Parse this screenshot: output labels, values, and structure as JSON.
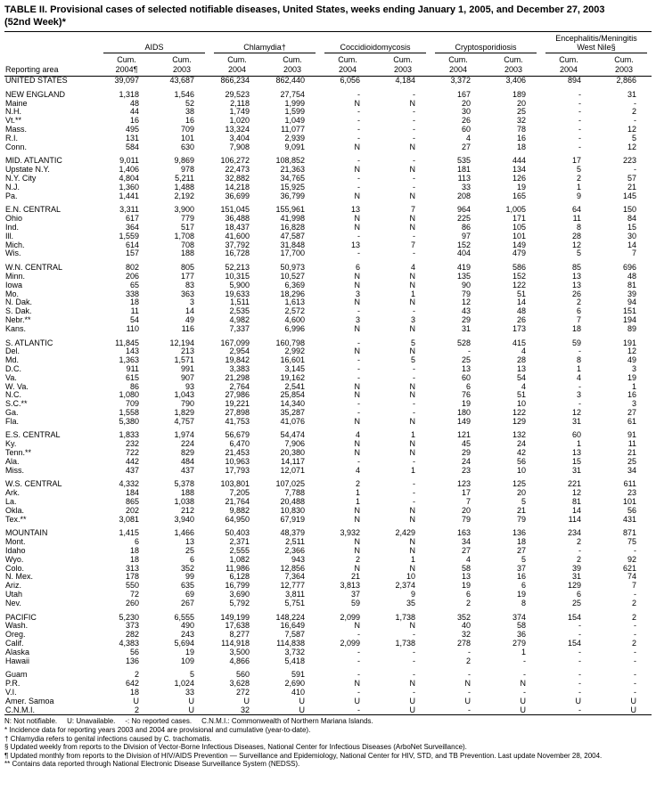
{
  "title": {
    "line1": "TABLE II. Provisional cases of selected notifiable diseases, United States, weeks ending January 1, 2005, and December 27, 2003",
    "line2": "(52nd Week)*"
  },
  "header": {
    "reporting_area": "Reporting area",
    "groups": [
      {
        "label": "AIDS",
        "columns": [
          [
            "Cum.",
            "2004¶"
          ],
          [
            "Cum.",
            "2003"
          ]
        ]
      },
      {
        "label": "Chlamydia†",
        "columns": [
          [
            "Cum.",
            "2004"
          ],
          [
            "Cum.",
            "2003"
          ]
        ]
      },
      {
        "label": "Coccidioidomycosis",
        "columns": [
          [
            "Cum.",
            "2004"
          ],
          [
            "Cum.",
            "2003"
          ]
        ]
      },
      {
        "label": "Cryptosporidiosis",
        "columns": [
          [
            "Cum.",
            "2004"
          ],
          [
            "Cum.",
            "2003"
          ]
        ]
      },
      {
        "label": "Encephalitis/Meningitis\nWest Nile§",
        "columns": [
          [
            "Cum.",
            "2004"
          ],
          [
            "Cum.",
            "2003"
          ]
        ]
      }
    ]
  },
  "row_groups": [
    [
      {
        "area": "UNITED STATES",
        "values": [
          "39,097",
          "43,687",
          "866,234",
          "862,440",
          "6,056",
          "4,184",
          "3,372",
          "3,406",
          "894",
          "2,866"
        ]
      }
    ],
    [
      {
        "area": "NEW ENGLAND",
        "values": [
          "1,318",
          "1,546",
          "29,523",
          "27,754",
          "-",
          "-",
          "167",
          "189",
          "-",
          "31"
        ]
      },
      {
        "area": "Maine",
        "values": [
          "48",
          "52",
          "2,118",
          "1,999",
          "N",
          "N",
          "20",
          "20",
          "-",
          "-"
        ]
      },
      {
        "area": "N.H.",
        "values": [
          "44",
          "38",
          "1,749",
          "1,599",
          "-",
          "-",
          "30",
          "25",
          "-",
          "2"
        ]
      },
      {
        "area": "Vt.**",
        "values": [
          "16",
          "16",
          "1,020",
          "1,049",
          "-",
          "-",
          "26",
          "32",
          "-",
          "-"
        ]
      },
      {
        "area": "Mass.",
        "values": [
          "495",
          "709",
          "13,324",
          "11,077",
          "-",
          "-",
          "60",
          "78",
          "-",
          "12"
        ]
      },
      {
        "area": "R.I.",
        "values": [
          "131",
          "101",
          "3,404",
          "2,939",
          "-",
          "-",
          "4",
          "16",
          "-",
          "5"
        ]
      },
      {
        "area": "Conn.",
        "values": [
          "584",
          "630",
          "7,908",
          "9,091",
          "N",
          "N",
          "27",
          "18",
          "-",
          "12"
        ]
      }
    ],
    [
      {
        "area": "MID. ATLANTIC",
        "values": [
          "9,011",
          "9,869",
          "106,272",
          "108,852",
          "-",
          "-",
          "535",
          "444",
          "17",
          "223"
        ]
      },
      {
        "area": "Upstate N.Y.",
        "values": [
          "1,406",
          "978",
          "22,473",
          "21,363",
          "N",
          "N",
          "181",
          "134",
          "5",
          "-"
        ]
      },
      {
        "area": "N.Y. City",
        "values": [
          "4,804",
          "5,211",
          "32,882",
          "34,765",
          "-",
          "-",
          "113",
          "126",
          "2",
          "57"
        ]
      },
      {
        "area": "N.J.",
        "values": [
          "1,360",
          "1,488",
          "14,218",
          "15,925",
          "-",
          "-",
          "33",
          "19",
          "1",
          "21"
        ]
      },
      {
        "area": "Pa.",
        "values": [
          "1,441",
          "2,192",
          "36,699",
          "36,799",
          "N",
          "N",
          "208",
          "165",
          "9",
          "145"
        ]
      }
    ],
    [
      {
        "area": "E.N. CENTRAL",
        "values": [
          "3,311",
          "3,900",
          "151,045",
          "155,961",
          "13",
          "7",
          "964",
          "1,005",
          "64",
          "150"
        ]
      },
      {
        "area": "Ohio",
        "values": [
          "617",
          "779",
          "36,488",
          "41,998",
          "N",
          "N",
          "225",
          "171",
          "11",
          "84"
        ]
      },
      {
        "area": "Ind.",
        "values": [
          "364",
          "517",
          "18,437",
          "16,828",
          "N",
          "N",
          "86",
          "105",
          "8",
          "15"
        ]
      },
      {
        "area": "Ill.",
        "values": [
          "1,559",
          "1,708",
          "41,600",
          "47,587",
          "-",
          "-",
          "97",
          "101",
          "28",
          "30"
        ]
      },
      {
        "area": "Mich.",
        "values": [
          "614",
          "708",
          "37,792",
          "31,848",
          "13",
          "7",
          "152",
          "149",
          "12",
          "14"
        ]
      },
      {
        "area": "Wis.",
        "values": [
          "157",
          "188",
          "16,728",
          "17,700",
          "-",
          "-",
          "404",
          "479",
          "5",
          "7"
        ]
      }
    ],
    [
      {
        "area": "W.N. CENTRAL",
        "values": [
          "802",
          "805",
          "52,213",
          "50,973",
          "6",
          "4",
          "419",
          "586",
          "85",
          "696"
        ]
      },
      {
        "area": "Minn.",
        "values": [
          "206",
          "177",
          "10,315",
          "10,527",
          "N",
          "N",
          "135",
          "152",
          "13",
          "48"
        ]
      },
      {
        "area": "Iowa",
        "values": [
          "65",
          "83",
          "5,900",
          "6,369",
          "N",
          "N",
          "90",
          "122",
          "13",
          "81"
        ]
      },
      {
        "area": "Mo.",
        "values": [
          "338",
          "363",
          "19,633",
          "18,296",
          "3",
          "1",
          "79",
          "51",
          "26",
          "39"
        ]
      },
      {
        "area": "N. Dak.",
        "values": [
          "18",
          "3",
          "1,511",
          "1,613",
          "N",
          "N",
          "12",
          "14",
          "2",
          "94"
        ]
      },
      {
        "area": "S. Dak.",
        "values": [
          "11",
          "14",
          "2,535",
          "2,572",
          "-",
          "-",
          "43",
          "48",
          "6",
          "151"
        ]
      },
      {
        "area": "Nebr.**",
        "values": [
          "54",
          "49",
          "4,982",
          "4,600",
          "3",
          "3",
          "29",
          "26",
          "7",
          "194"
        ]
      },
      {
        "area": "Kans.",
        "values": [
          "110",
          "116",
          "7,337",
          "6,996",
          "N",
          "N",
          "31",
          "173",
          "18",
          "89"
        ]
      }
    ],
    [
      {
        "area": "S. ATLANTIC",
        "values": [
          "11,845",
          "12,194",
          "167,099",
          "160,798",
          "-",
          "5",
          "528",
          "415",
          "59",
          "191"
        ]
      },
      {
        "area": "Del.",
        "values": [
          "143",
          "213",
          "2,954",
          "2,992",
          "N",
          "N",
          "-",
          "4",
          "-",
          "12"
        ]
      },
      {
        "area": "Md.",
        "values": [
          "1,363",
          "1,571",
          "19,842",
          "16,601",
          "-",
          "5",
          "25",
          "28",
          "8",
          "49"
        ]
      },
      {
        "area": "D.C.",
        "values": [
          "911",
          "991",
          "3,383",
          "3,145",
          "-",
          "-",
          "13",
          "13",
          "1",
          "3"
        ]
      },
      {
        "area": "Va.",
        "values": [
          "615",
          "907",
          "21,298",
          "19,162",
          "-",
          "-",
          "60",
          "54",
          "4",
          "19"
        ]
      },
      {
        "area": "W. Va.",
        "values": [
          "86",
          "93",
          "2,764",
          "2,541",
          "N",
          "N",
          "6",
          "4",
          "-",
          "1"
        ]
      },
      {
        "area": "N.C.",
        "values": [
          "1,080",
          "1,043",
          "27,986",
          "25,854",
          "N",
          "N",
          "76",
          "51",
          "3",
          "16"
        ]
      },
      {
        "area": "S.C.**",
        "values": [
          "709",
          "790",
          "19,221",
          "14,340",
          "-",
          "-",
          "19",
          "10",
          "-",
          "3"
        ]
      },
      {
        "area": "Ga.",
        "values": [
          "1,558",
          "1,829",
          "27,898",
          "35,287",
          "-",
          "-",
          "180",
          "122",
          "12",
          "27"
        ]
      },
      {
        "area": "Fla.",
        "values": [
          "5,380",
          "4,757",
          "41,753",
          "41,076",
          "N",
          "N",
          "149",
          "129",
          "31",
          "61"
        ]
      }
    ],
    [
      {
        "area": "E.S. CENTRAL",
        "values": [
          "1,833",
          "1,974",
          "56,679",
          "54,474",
          "4",
          "1",
          "121",
          "132",
          "60",
          "91"
        ]
      },
      {
        "area": "Ky.",
        "values": [
          "232",
          "224",
          "6,470",
          "7,906",
          "N",
          "N",
          "45",
          "24",
          "1",
          "11"
        ]
      },
      {
        "area": "Tenn.**",
        "values": [
          "722",
          "829",
          "21,453",
          "20,380",
          "N",
          "N",
          "29",
          "42",
          "13",
          "21"
        ]
      },
      {
        "area": "Ala.",
        "values": [
          "442",
          "484",
          "10,963",
          "14,117",
          "-",
          "-",
          "24",
          "56",
          "15",
          "25"
        ]
      },
      {
        "area": "Miss.",
        "values": [
          "437",
          "437",
          "17,793",
          "12,071",
          "4",
          "1",
          "23",
          "10",
          "31",
          "34"
        ]
      }
    ],
    [
      {
        "area": "W.S. CENTRAL",
        "values": [
          "4,332",
          "5,378",
          "103,801",
          "107,025",
          "2",
          "-",
          "123",
          "125",
          "221",
          "611"
        ]
      },
      {
        "area": "Ark.",
        "values": [
          "184",
          "188",
          "7,205",
          "7,788",
          "1",
          "-",
          "17",
          "20",
          "12",
          "23"
        ]
      },
      {
        "area": "La.",
        "values": [
          "865",
          "1,038",
          "21,764",
          "20,488",
          "1",
          "-",
          "7",
          "5",
          "81",
          "101"
        ]
      },
      {
        "area": "Okla.",
        "values": [
          "202",
          "212",
          "9,882",
          "10,830",
          "N",
          "N",
          "20",
          "21",
          "14",
          "56"
        ]
      },
      {
        "area": "Tex.**",
        "values": [
          "3,081",
          "3,940",
          "64,950",
          "67,919",
          "N",
          "N",
          "79",
          "79",
          "114",
          "431"
        ]
      }
    ],
    [
      {
        "area": "MOUNTAIN",
        "values": [
          "1,415",
          "1,466",
          "50,403",
          "48,379",
          "3,932",
          "2,429",
          "163",
          "136",
          "234",
          "871"
        ]
      },
      {
        "area": "Mont.",
        "values": [
          "6",
          "13",
          "2,371",
          "2,511",
          "N",
          "N",
          "34",
          "18",
          "2",
          "75"
        ]
      },
      {
        "area": "Idaho",
        "values": [
          "18",
          "25",
          "2,555",
          "2,366",
          "N",
          "N",
          "27",
          "27",
          "-",
          "-"
        ]
      },
      {
        "area": "Wyo.",
        "values": [
          "18",
          "6",
          "1,082",
          "943",
          "2",
          "1",
          "4",
          "5",
          "2",
          "92"
        ]
      },
      {
        "area": "Colo.",
        "values": [
          "313",
          "352",
          "11,986",
          "12,856",
          "N",
          "N",
          "58",
          "37",
          "39",
          "621"
        ]
      },
      {
        "area": "N. Mex.",
        "values": [
          "178",
          "99",
          "6,128",
          "7,364",
          "21",
          "10",
          "13",
          "16",
          "31",
          "74"
        ]
      },
      {
        "area": "Ariz.",
        "values": [
          "550",
          "635",
          "16,799",
          "12,777",
          "3,813",
          "2,374",
          "19",
          "6",
          "129",
          "7"
        ]
      },
      {
        "area": "Utah",
        "values": [
          "72",
          "69",
          "3,690",
          "3,811",
          "37",
          "9",
          "6",
          "19",
          "6",
          "-"
        ]
      },
      {
        "area": "Nev.",
        "values": [
          "260",
          "267",
          "5,792",
          "5,751",
          "59",
          "35",
          "2",
          "8",
          "25",
          "2"
        ]
      }
    ],
    [
      {
        "area": "PACIFIC",
        "values": [
          "5,230",
          "6,555",
          "149,199",
          "148,224",
          "2,099",
          "1,738",
          "352",
          "374",
          "154",
          "2"
        ]
      },
      {
        "area": "Wash.",
        "values": [
          "373",
          "490",
          "17,638",
          "16,649",
          "N",
          "N",
          "40",
          "58",
          "-",
          "-"
        ]
      },
      {
        "area": "Oreg.",
        "values": [
          "282",
          "243",
          "8,277",
          "7,587",
          "-",
          "-",
          "32",
          "36",
          "-",
          "-"
        ]
      },
      {
        "area": "Calif.",
        "values": [
          "4,383",
          "5,694",
          "114,918",
          "114,838",
          "2,099",
          "1,738",
          "278",
          "279",
          "154",
          "2"
        ]
      },
      {
        "area": "Alaska",
        "values": [
          "56",
          "19",
          "3,500",
          "3,732",
          "-",
          "-",
          "-",
          "1",
          "-",
          "-"
        ]
      },
      {
        "area": "Hawaii",
        "values": [
          "136",
          "109",
          "4,866",
          "5,418",
          "-",
          "-",
          "2",
          "-",
          "-",
          "-"
        ]
      }
    ],
    [
      {
        "area": "Guam",
        "values": [
          "2",
          "5",
          "560",
          "591",
          "-",
          "-",
          "-",
          "-",
          "-",
          "-"
        ]
      },
      {
        "area": "P.R.",
        "values": [
          "642",
          "1,024",
          "3,628",
          "2,690",
          "N",
          "N",
          "N",
          "N",
          "-",
          "-"
        ]
      },
      {
        "area": "V.I.",
        "values": [
          "18",
          "33",
          "272",
          "410",
          "-",
          "-",
          "-",
          "-",
          "-",
          "-"
        ]
      },
      {
        "area": "Amer. Samoa",
        "values": [
          "U",
          "U",
          "U",
          "U",
          "U",
          "U",
          "U",
          "U",
          "U",
          "U"
        ]
      },
      {
        "area": "C.N.M.I.",
        "values": [
          "2",
          "U",
          "32",
          "U",
          "-",
          "U",
          "-",
          "U",
          "-",
          "U"
        ]
      }
    ]
  ],
  "footnote_abbreviations": [
    "N: Not notifiable.",
    "U: Unavailable.",
    "-: No reported cases.",
    "C.N.M.I.: Commonwealth of Northern Mariana Islands."
  ],
  "footnotes": [
    "* Incidence data for reporting years 2003 and 2004 are provisional and cumulative (year-to-date).",
    "† Chlamydia refers to genital infections caused by C. trachomatis.",
    "§ Updated weekly from reports to the Division of Vector-Borne Infectious Diseases, National Center for Infectious Diseases (ArboNet Surveillance).",
    "¶ Updated monthly from reports to the Division of HIV/AIDS Prevention — Surveillance and Epidemiology, National Center for HIV, STD, and TB Prevention. Last update November 28, 2004.",
    "** Contains data reported through National Electronic Disease Surveillance System (NEDSS)."
  ],
  "colors": {
    "text": "#000000",
    "background": "#ffffff",
    "rule": "#000000"
  }
}
